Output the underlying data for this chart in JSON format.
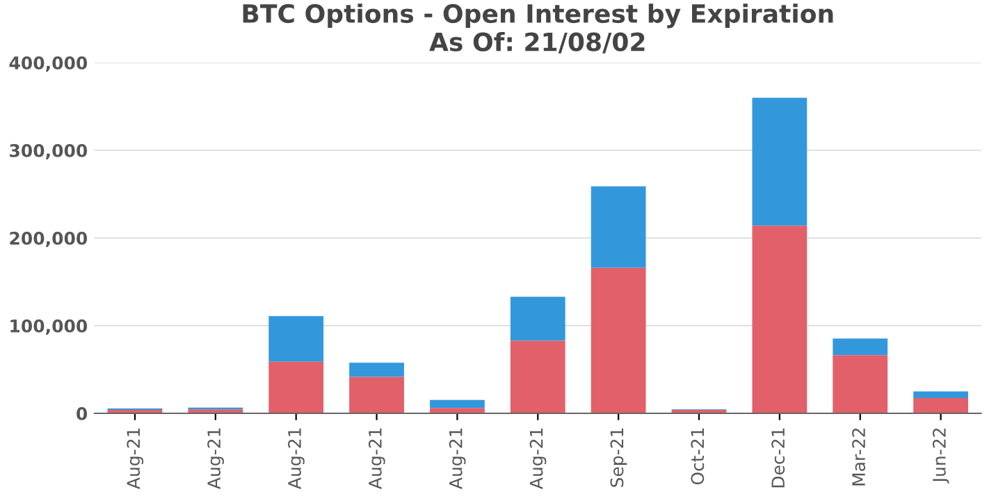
{
  "chart_data": {
    "type": "bar",
    "title": "BTC Options - Open Interest by Expiration\nAs Of: 21/08/02",
    "categories": [
      "Aug-21",
      "Aug-21",
      "Aug-21",
      "Aug-21",
      "Aug-21",
      "Aug-21",
      "Sep-21",
      "Oct-21",
      "Dec-21",
      "Mar-22",
      "Jun-22"
    ],
    "stacked": true,
    "series": [
      {
        "color": "#e2606a",
        "values": [
          4000,
          4500,
          59000,
          41700,
          6200,
          83000,
          166000,
          4000,
          214000,
          66400,
          17500
        ]
      },
      {
        "color": "#3398db",
        "values": [
          1500,
          2000,
          52000,
          16000,
          9000,
          50000,
          93000,
          600,
          146000,
          19000,
          7500
        ]
      }
    ],
    "ylim": [
      0,
      400000
    ],
    "yticks": [
      {
        "value": 0,
        "label": "0"
      },
      {
        "value": 100000,
        "label": "100,000"
      },
      {
        "value": 200000,
        "label": "200,000"
      },
      {
        "value": 300000,
        "label": "300,000"
      },
      {
        "value": 400000,
        "label": "400,000"
      }
    ],
    "grid": "y",
    "legend": false
  }
}
